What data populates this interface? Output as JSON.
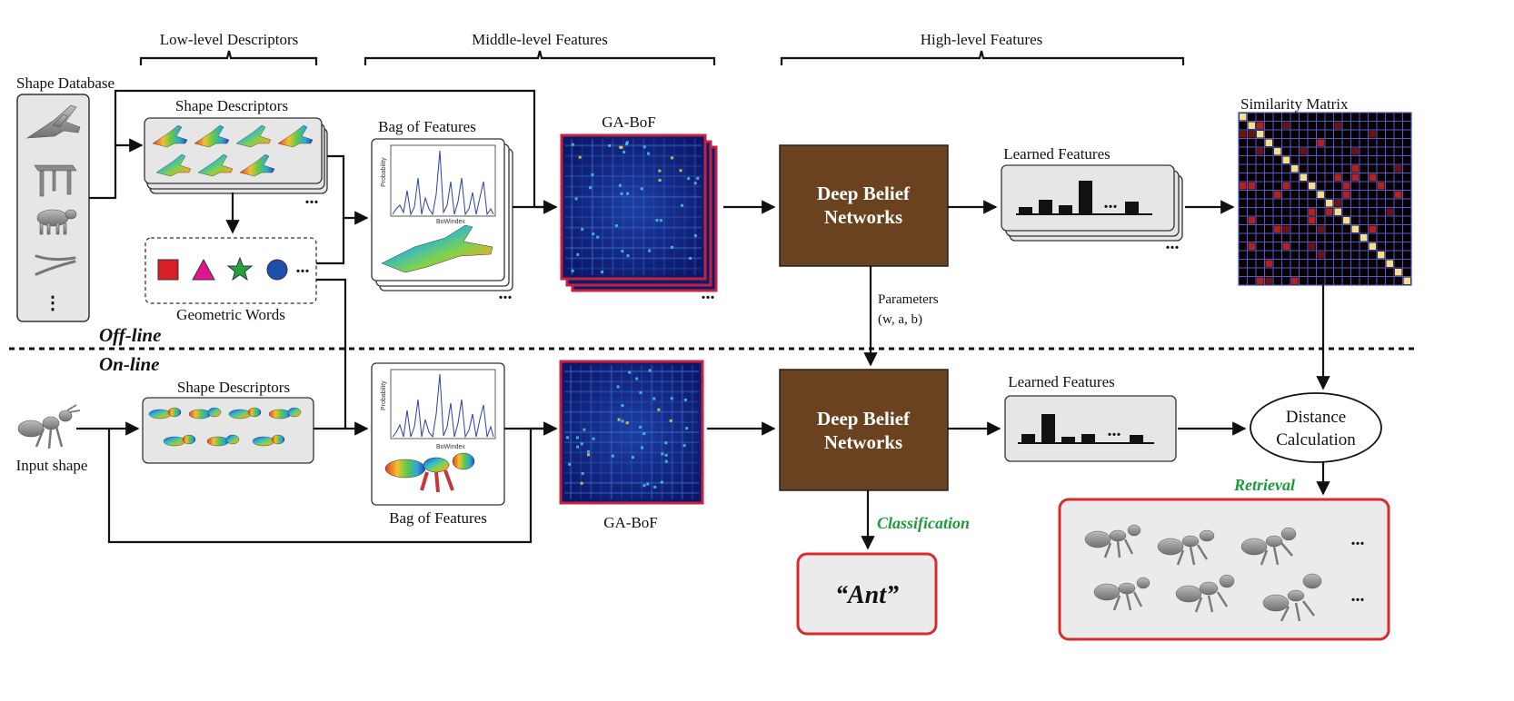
{
  "headers": {
    "low": "Low-level Descriptors",
    "middle": "Middle-level Features",
    "high": "High-level Features"
  },
  "offline": {
    "section": "Off-line",
    "shape_database": "Shape Database",
    "shape_descriptors": "Shape Descriptors",
    "geometric_words": "Geometric Words",
    "bag_of_features": "Bag of Features",
    "ga_bof": "GA-BoF",
    "dbn_line1": "Deep Belief",
    "dbn_line2": "Networks",
    "learned_features": "Learned Features",
    "similarity_matrix": "Similarity Matrix"
  },
  "parameters": {
    "line1": "Parameters",
    "line2": "(w, a, b)"
  },
  "online": {
    "section": "On-line",
    "input_shape": "Input shape",
    "shape_descriptors": "Shape Descriptors",
    "bag_of_features": "Bag of Features",
    "ga_bof": "GA-BoF",
    "dbn_line1": "Deep Belief",
    "dbn_line2": "Networks",
    "learned_features": "Learned Features",
    "distance_line1": "Distance",
    "distance_line2": "Calculation",
    "classification": "Classification",
    "class_result": "“Ant”",
    "retrieval": "Retrieval"
  },
  "plot_labels": {
    "ylabel": "Probability",
    "xlabel": "BoWindex"
  },
  "ellipsis": "...",
  "vertical_ellipsis": "⋮",
  "colors": {
    "dbn_fill": "#6b4220",
    "result_border": "#d92b2b",
    "green_label": "#1e9a3c",
    "ga_bof_border": "#c8213d",
    "heatmap_bg": "#0d1d6e",
    "panel_fill": "#ebebeb",
    "square": "#d81f26",
    "triangle": "#e2158e",
    "star": "#22a33f",
    "circle": "#1d4faa"
  }
}
